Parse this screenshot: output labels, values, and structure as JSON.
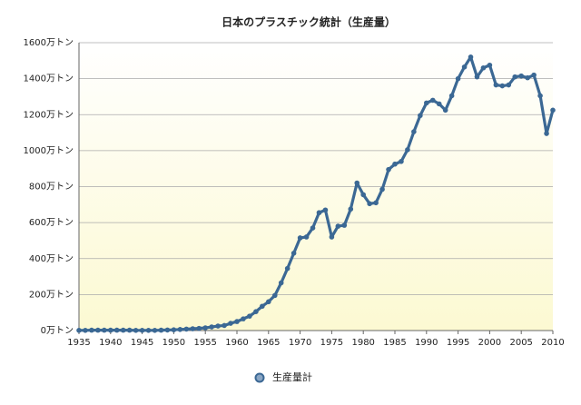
{
  "chart_data": {
    "type": "line",
    "title": "日本のプラスチック統計（生産量）",
    "x": [
      1935,
      1936,
      1937,
      1938,
      1939,
      1940,
      1941,
      1942,
      1943,
      1944,
      1945,
      1946,
      1947,
      1948,
      1949,
      1950,
      1951,
      1952,
      1953,
      1954,
      1955,
      1956,
      1957,
      1958,
      1959,
      1960,
      1961,
      1962,
      1963,
      1964,
      1965,
      1966,
      1967,
      1968,
      1969,
      1970,
      1971,
      1972,
      1973,
      1974,
      1975,
      1976,
      1977,
      1978,
      1979,
      1980,
      1981,
      1982,
      1983,
      1984,
      1985,
      1986,
      1987,
      1988,
      1989,
      1990,
      1991,
      1992,
      1993,
      1994,
      1995,
      1996,
      1997,
      1998,
      1999,
      2000,
      2001,
      2002,
      2003,
      2004,
      2005,
      2006,
      2007,
      2008,
      2009,
      2010
    ],
    "series": [
      {
        "name": "生産量計",
        "color": "#3b6894",
        "values": [
          1,
          1,
          2,
          2,
          2,
          2,
          2,
          2,
          2,
          1,
          1,
          1,
          1,
          2,
          3,
          4,
          6,
          8,
          10,
          12,
          15,
          20,
          25,
          28,
          40,
          50,
          65,
          80,
          105,
          135,
          160,
          195,
          265,
          345,
          430,
          515,
          520,
          570,
          655,
          670,
          520,
          580,
          585,
          675,
          820,
          755,
          705,
          710,
          785,
          895,
          925,
          940,
          1005,
          1105,
          1195,
          1265,
          1280,
          1260,
          1225,
          1305,
          1400,
          1465,
          1520,
          1410,
          1460,
          1475,
          1365,
          1360,
          1365,
          1410,
          1415,
          1405,
          1420,
          1305,
          1095,
          1225
        ]
      }
    ],
    "xlim": [
      1935,
      2010
    ],
    "xticks": [
      1935,
      1940,
      1945,
      1950,
      1955,
      1960,
      1965,
      1970,
      1975,
      1980,
      1985,
      1990,
      1995,
      2000,
      2005,
      2010
    ],
    "ylim": [
      0,
      1600
    ],
    "yticks": [
      {
        "value": 0,
        "label": "0万トン"
      },
      {
        "value": 200,
        "label": "200万トン"
      },
      {
        "value": 400,
        "label": "400万トン"
      },
      {
        "value": 600,
        "label": "600万トン"
      },
      {
        "value": 800,
        "label": "800万トン"
      },
      {
        "value": 1000,
        "label": "1000万トン"
      },
      {
        "value": 1200,
        "label": "1200万トン"
      },
      {
        "value": 1400,
        "label": "1400万トン"
      },
      {
        "value": 1600,
        "label": "1600万トン"
      }
    ],
    "grid": true,
    "legend": "bottom"
  }
}
